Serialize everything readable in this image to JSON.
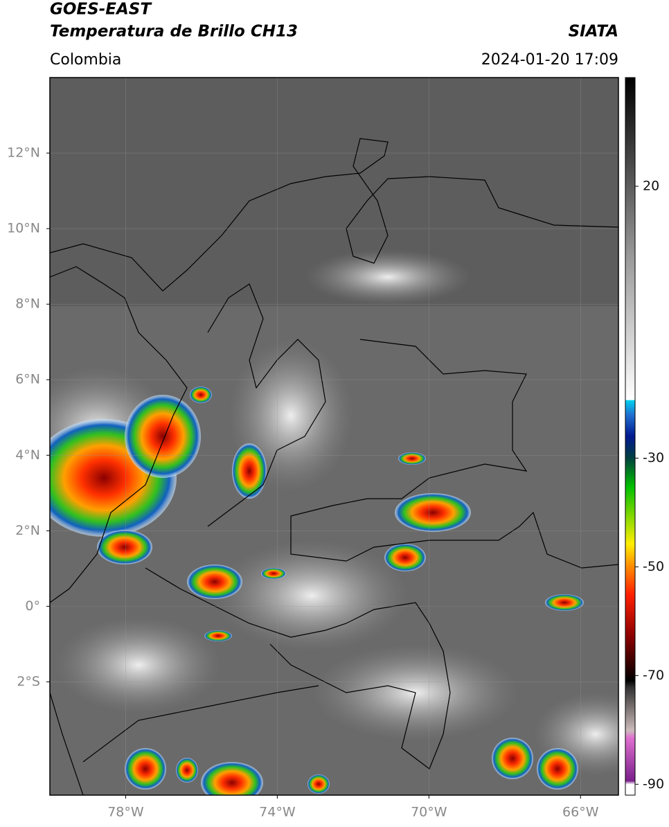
{
  "header": {
    "title": "GOES-EAST",
    "subtitle": "Temperatura de Brillo CH13",
    "source": "SIATA",
    "region": "Colombia",
    "datetime": "2024-01-20 17:09"
  },
  "map": {
    "xlim": [
      -80,
      -65
    ],
    "ylim": [
      -5,
      14
    ],
    "xticks": [
      {
        "value": -78,
        "label": "78°W"
      },
      {
        "value": -74,
        "label": "74°W"
      },
      {
        "value": -70,
        "label": "70°W"
      },
      {
        "value": -66,
        "label": "66°W"
      }
    ],
    "yticks": [
      {
        "value": 12,
        "label": "12°N"
      },
      {
        "value": 10,
        "label": "10°N"
      },
      {
        "value": 8,
        "label": "8°N"
      },
      {
        "value": 6,
        "label": "6°N"
      },
      {
        "value": 4,
        "label": "4°N"
      },
      {
        "value": 2,
        "label": "2°N"
      },
      {
        "value": 0,
        "label": "0°"
      },
      {
        "value": -2,
        "label": "2°S"
      }
    ]
  },
  "colorbar": {
    "lim": [
      -92,
      40
    ],
    "ticks": [
      20,
      -30,
      -50,
      -70,
      -90
    ]
  }
}
